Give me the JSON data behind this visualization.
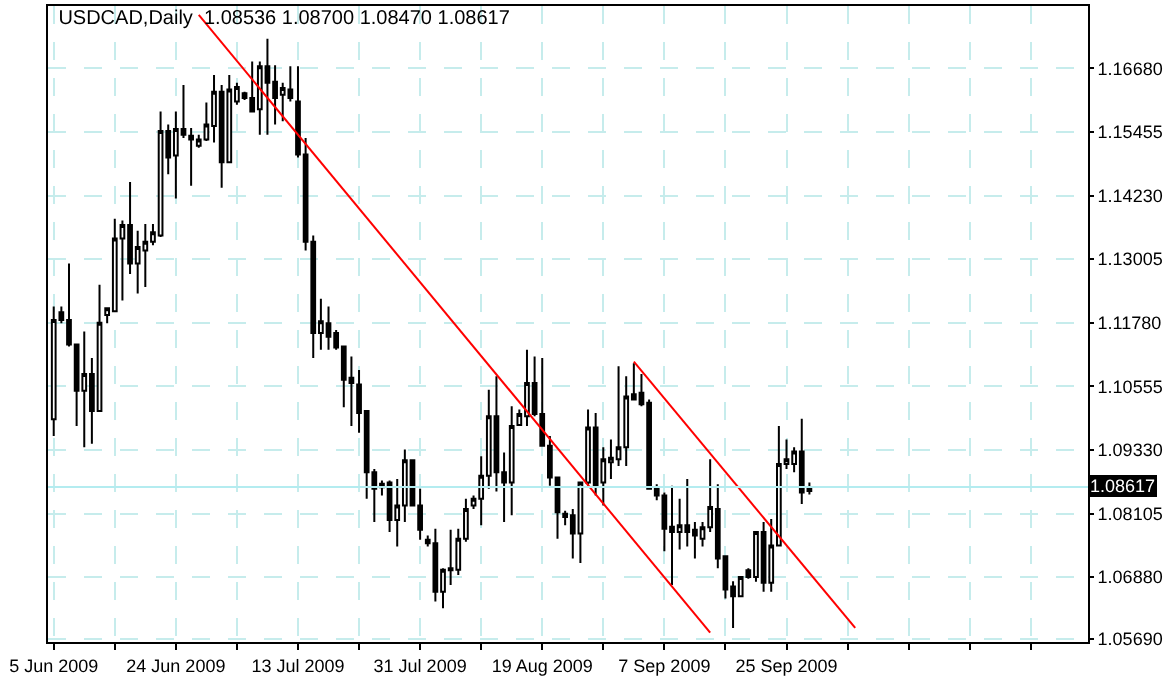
{
  "chart_data": {
    "type": "candlestick",
    "title": "USDCAD,Daily  1.08536 1.08700 1.08470 1.08617",
    "categories": [
      "5 Jun 2009",
      null,
      null,
      null,
      null,
      null,
      null,
      null,
      null,
      null,
      null,
      null,
      null,
      null,
      null,
      null,
      "24 Jun 2009",
      null,
      null,
      null,
      null,
      null,
      null,
      null,
      null,
      null,
      null,
      null,
      null,
      null,
      null,
      null,
      "13 Jul 2009",
      null,
      null,
      null,
      null,
      null,
      null,
      null,
      null,
      null,
      null,
      null,
      null,
      null,
      null,
      null,
      "31 Jul 2009",
      null,
      null,
      null,
      null,
      null,
      null,
      null,
      null,
      null,
      null,
      null,
      null,
      null,
      null,
      null,
      "19 Aug 2009",
      null,
      null,
      null,
      null,
      null,
      null,
      null,
      null,
      null,
      null,
      null,
      null,
      null,
      null,
      null,
      "7 Sep 2009",
      null,
      null,
      null,
      null,
      null,
      null,
      null,
      null,
      null,
      null,
      null,
      null,
      null,
      null,
      null,
      "25 Sep 2009",
      null,
      null,
      null,
      null,
      null,
      null,
      null,
      null,
      null,
      null,
      null,
      null,
      null,
      null,
      null,
      null,
      null,
      null,
      null,
      null,
      null,
      null,
      null,
      null,
      null,
      null,
      null,
      null,
      null,
      null,
      null,
      null,
      null,
      null,
      null,
      null,
      null,
      null,
      null
    ],
    "color": "#000000",
    "ohlc": [
      [
        1.0992,
        1.1209,
        1.096,
        1.1183
      ],
      [
        1.1198,
        1.1209,
        1.1177,
        1.1183
      ],
      [
        1.1183,
        1.1292,
        1.1132,
        1.1136
      ],
      [
        1.1136,
        1.1136,
        1.0979,
        1.1047
      ],
      [
        1.1047,
        1.1161,
        1.0938,
        1.1079
      ],
      [
        1.1079,
        1.111,
        1.0945,
        1.1008
      ],
      [
        1.1008,
        1.1251,
        1.1008,
        1.1178
      ],
      [
        1.1193,
        1.1206,
        1.1177,
        1.1206
      ],
      [
        1.12,
        1.1378,
        1.12,
        1.134
      ],
      [
        1.134,
        1.1375,
        1.1221,
        1.1366
      ],
      [
        1.1366,
        1.1449,
        1.1272,
        1.1292
      ],
      [
        1.1292,
        1.1355,
        1.1234,
        1.1324
      ],
      [
        1.1317,
        1.1368,
        1.1247,
        1.1334
      ],
      [
        1.1334,
        1.1368,
        1.1327,
        1.1352
      ],
      [
        1.1346,
        1.1585,
        1.1343,
        1.1547
      ],
      [
        1.1547,
        1.156,
        1.1464,
        1.1496
      ],
      [
        1.15,
        1.1585,
        1.1417,
        1.1551
      ],
      [
        1.1551,
        1.1636,
        1.1534,
        1.154
      ],
      [
        1.1538,
        1.1553,
        1.1442,
        1.1531
      ],
      [
        1.1519,
        1.154,
        1.1515,
        1.1531
      ],
      [
        1.1531,
        1.1602,
        1.1528,
        1.156
      ],
      [
        1.1557,
        1.1655,
        1.1525,
        1.1623
      ],
      [
        1.1623,
        1.1636,
        1.1438,
        1.1487
      ],
      [
        1.1487,
        1.1655,
        1.1487,
        1.1627
      ],
      [
        1.1604,
        1.164,
        1.1598,
        1.1632
      ],
      [
        1.162,
        1.1623,
        1.1607,
        1.1611
      ],
      [
        1.1611,
        1.1681,
        1.1585,
        1.1585
      ],
      [
        1.1589,
        1.1681,
        1.154,
        1.1672
      ],
      [
        1.1672,
        1.1725,
        1.154,
        1.164
      ],
      [
        1.1642,
        1.1674,
        1.156,
        1.1611
      ],
      [
        1.1617,
        1.164,
        1.1566,
        1.163
      ],
      [
        1.1627,
        1.1672,
        1.1604,
        1.1611
      ],
      [
        1.1604,
        1.1672,
        1.1496,
        1.1502
      ],
      [
        1.1502,
        1.1534,
        1.1317,
        1.1334
      ],
      [
        1.1334,
        1.1346,
        1.111,
        1.1158
      ],
      [
        1.1158,
        1.1224,
        1.1126,
        1.1181
      ],
      [
        1.1177,
        1.1209,
        1.1126,
        1.1151
      ],
      [
        1.1158,
        1.1164,
        1.1126,
        1.113
      ],
      [
        1.1132,
        1.1132,
        1.1015,
        1.1068
      ],
      [
        1.1072,
        1.1113,
        1.0979,
        1.1062
      ],
      [
        1.1059,
        1.1087,
        1.0966,
        1.1004
      ],
      [
        1.1008,
        1.1008,
        1.0839,
        1.089
      ],
      [
        1.089,
        1.0896,
        1.0794,
        1.0858
      ],
      [
        1.0868,
        1.0874,
        1.0845,
        1.0861
      ],
      [
        1.087,
        1.0874,
        1.0775,
        1.0798
      ],
      [
        1.0798,
        1.0877,
        1.0747,
        1.0826
      ],
      [
        1.0826,
        1.0934,
        1.0794,
        1.0913
      ],
      [
        1.0913,
        1.0915,
        1.0826,
        1.0826
      ],
      [
        1.0826,
        1.0858,
        1.076,
        1.0779
      ],
      [
        1.076,
        1.0768,
        1.0747,
        1.0753
      ],
      [
        1.0753,
        1.0781,
        1.0641,
        1.066
      ],
      [
        1.066,
        1.0705,
        1.0628,
        1.0702
      ],
      [
        1.0705,
        1.0779,
        1.0673,
        1.0701
      ],
      [
        1.0702,
        1.0781,
        1.0692,
        1.0762
      ],
      [
        1.0762,
        1.0839,
        1.0756,
        1.0819
      ],
      [
        1.0826,
        1.0845,
        1.0819,
        1.0839
      ],
      [
        1.0839,
        1.0921,
        1.0788,
        1.0883
      ],
      [
        1.0883,
        1.1049,
        1.0858,
        1.0998
      ],
      [
        1.0998,
        1.1075,
        1.0853,
        1.089
      ],
      [
        1.089,
        1.0928,
        1.0794,
        1.087
      ],
      [
        1.087,
        1.1017,
        1.0807,
        1.0979
      ],
      [
        1.0981,
        1.1011,
        1.0979,
        1.1002
      ],
      [
        1.0998,
        1.1126,
        1.0979,
        1.1062
      ],
      [
        1.1062,
        1.1113,
        1.0998,
        1.1002
      ],
      [
        1.1002,
        1.111,
        1.0941,
        1.0941
      ],
      [
        1.0941,
        1.096,
        1.0864,
        1.088
      ],
      [
        1.088,
        1.088,
        1.0762,
        1.0813
      ],
      [
        1.081,
        1.0816,
        1.0788,
        1.0804
      ],
      [
        1.0807,
        1.0819,
        1.0724,
        1.0772
      ],
      [
        1.0772,
        1.087,
        1.0715,
        1.087
      ],
      [
        1.087,
        1.1011,
        1.0864,
        1.0976
      ],
      [
        1.0976,
        1.1004,
        1.0845,
        1.0864
      ],
      [
        1.087,
        1.0938,
        1.0826,
        1.0915
      ],
      [
        1.0909,
        1.0953,
        1.0877,
        1.0918
      ],
      [
        1.0915,
        1.1094,
        1.0902,
        1.0938
      ],
      [
        1.0938,
        1.1075,
        1.0902,
        1.1036
      ],
      [
        1.104,
        1.11,
        1.103,
        1.103
      ],
      [
        1.1043,
        1.1079,
        1.1017,
        1.1021
      ],
      [
        1.1024,
        1.103,
        1.0858,
        1.0858
      ],
      [
        1.0861,
        1.0867,
        1.0836,
        1.0845
      ],
      [
        1.0845,
        1.0851,
        1.0738,
        1.0781
      ],
      [
        1.0785,
        1.0864,
        1.0673,
        1.0775
      ],
      [
        1.0775,
        1.0839,
        1.0741,
        1.0788
      ],
      [
        1.0788,
        1.0877,
        1.0747,
        1.0775
      ],
      [
        1.0779,
        1.0794,
        1.0724,
        1.0768
      ],
      [
        1.0762,
        1.0794,
        1.0747,
        1.0784
      ],
      [
        1.0784,
        1.0915,
        1.0775,
        1.0823
      ],
      [
        1.0819,
        1.0867,
        1.0705,
        1.0724
      ],
      [
        1.0728,
        1.073,
        1.0647,
        1.0664
      ],
      [
        1.067,
        1.068,
        1.059,
        1.0651
      ],
      [
        1.0651,
        1.0688,
        1.0651,
        1.0688
      ],
      [
        1.0701,
        1.0705,
        1.0685,
        1.0688
      ],
      [
        1.0688,
        1.0775,
        1.0679,
        1.0775
      ],
      [
        1.0775,
        1.0794,
        1.066,
        1.0677
      ],
      [
        1.0677,
        1.08,
        1.066,
        1.0749
      ],
      [
        1.0749,
        1.0979,
        1.0747,
        1.0906
      ],
      [
        1.0906,
        1.0953,
        1.0896,
        1.0915
      ],
      [
        1.0906,
        1.0938,
        1.089,
        1.093
      ],
      [
        1.093,
        1.0993,
        1.0829,
        1.0851
      ],
      [
        1.08536,
        1.087,
        1.0847,
        1.08617
      ],
      null,
      null,
      null,
      null,
      null,
      null,
      null,
      null,
      null,
      null,
      null,
      null,
      null,
      null,
      null,
      null,
      null,
      null,
      null,
      null,
      null,
      null,
      null,
      null,
      null,
      null,
      null,
      null,
      null,
      null,
      null,
      null,
      null,
      null,
      null,
      null
    ],
    "series": [
      {
        "type": "line",
        "color": "#ff0000",
        "values": [
          null,
          null,
          null,
          null,
          null,
          null,
          null,
          null,
          null,
          null,
          null,
          null,
          null,
          null,
          null,
          null,
          null,
          null,
          null,
          1.1771,
          null,
          null,
          null,
          null,
          null,
          null,
          null,
          null,
          null,
          null,
          null,
          null,
          null,
          null,
          null,
          null,
          null,
          null,
          null,
          null,
          null,
          null,
          null,
          null,
          null,
          null,
          null,
          null,
          null,
          null,
          null,
          null,
          null,
          null,
          null,
          null,
          null,
          null,
          null,
          null,
          null,
          null,
          null,
          null,
          null,
          null,
          null,
          null,
          null,
          null,
          null,
          null,
          null,
          null,
          null,
          null,
          null,
          null,
          null,
          null,
          null,
          null,
          null,
          null,
          null,
          null,
          1.0581,
          null,
          null,
          null,
          null,
          null,
          null,
          null,
          null,
          null,
          null,
          null,
          null,
          null,
          null,
          null,
          null,
          null,
          null,
          null,
          null,
          null,
          null,
          null,
          null,
          null,
          null,
          null,
          null,
          null,
          null,
          null,
          null,
          null,
          null,
          null,
          null,
          null,
          null,
          null,
          null,
          null,
          null,
          null,
          null,
          null,
          null,
          null,
          null,
          null
        ]
      },
      {
        "type": "line",
        "color": "#ff0000",
        "values": [
          null,
          null,
          null,
          null,
          null,
          null,
          null,
          null,
          null,
          null,
          null,
          null,
          null,
          null,
          null,
          null,
          null,
          null,
          null,
          null,
          null,
          null,
          null,
          null,
          null,
          null,
          null,
          null,
          null,
          null,
          null,
          null,
          null,
          null,
          null,
          null,
          null,
          null,
          null,
          null,
          null,
          null,
          null,
          null,
          null,
          null,
          null,
          null,
          null,
          null,
          null,
          null,
          null,
          null,
          null,
          null,
          null,
          null,
          null,
          null,
          null,
          null,
          null,
          null,
          null,
          null,
          null,
          null,
          null,
          null,
          null,
          null,
          null,
          null,
          null,
          null,
          1.1103,
          null,
          null,
          null,
          null,
          null,
          null,
          null,
          null,
          null,
          null,
          null,
          null,
          null,
          null,
          null,
          null,
          null,
          null,
          null,
          null,
          null,
          null,
          null,
          null,
          null,
          null,
          null,
          null,
          1.059,
          null,
          null,
          null,
          null,
          null,
          null,
          null,
          null,
          null,
          null,
          null,
          null,
          null,
          null,
          null,
          null,
          null,
          null,
          null,
          null,
          null,
          null,
          null,
          null,
          null,
          null,
          null,
          null,
          null,
          null
        ]
      }
    ],
    "ylim": [
      1.0563,
      1.1788
    ],
    "yticks": [
      {
        "value": 1.0569,
        "label": "1.05690"
      },
      {
        "value": 1.0688,
        "label": "1.06880"
      },
      1.08105,
      {
        "value": 1.0933,
        "label": "1.09330"
      },
      1.10555,
      {
        "value": 1.1178,
        "label": "1.11780"
      },
      1.13005,
      {
        "value": 1.1423,
        "label": "1.14230"
      },
      1.15455,
      {
        "value": 1.1668,
        "label": "1.16680"
      }
    ],
    "ref_lines": [
      {
        "axis": "y",
        "value": 1.08617,
        "label": "1.08617",
        "color": "#b4ecf0"
      }
    ],
    "grid": true
  }
}
